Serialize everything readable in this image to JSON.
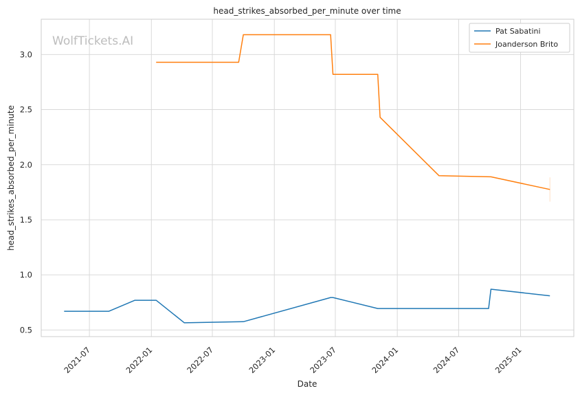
{
  "chart_data": {
    "type": "line",
    "title": "head_strikes_absorbed_per_minute over time",
    "xlabel": "Date",
    "ylabel": "head_strikes_absorbed_per_minute",
    "watermark": "WolfTickets.AI",
    "legend_position": "top-right",
    "grid": true,
    "xlim": [
      "2021-02-08",
      "2025-06-08"
    ],
    "ylim": [
      0.44,
      3.32
    ],
    "x_ticks": [
      "2021-07-01",
      "2022-01-01",
      "2022-07-01",
      "2023-01-01",
      "2023-07-01",
      "2024-01-01",
      "2024-07-01",
      "2025-01-01"
    ],
    "x_tick_labels": [
      "2021-07",
      "2022-01",
      "2022-07",
      "2023-01",
      "2023-07",
      "2024-01",
      "2024-07",
      "2025-01"
    ],
    "y_ticks": [
      0.5,
      1.0,
      1.5,
      2.0,
      2.5,
      3.0
    ],
    "y_tick_labels": [
      "0.5",
      "1.0",
      "1.5",
      "2.0",
      "2.5",
      "3.0"
    ],
    "series": [
      {
        "name": "Pat Sabatini",
        "color": "#1f77b4",
        "x": [
          "2021-04-17",
          "2021-08-28",
          "2021-11-13",
          "2022-01-15",
          "2022-04-09",
          "2022-10-01",
          "2023-06-17",
          "2023-06-24",
          "2023-11-04",
          "2024-09-28",
          "2024-10-05",
          "2025-03-29"
        ],
        "y": [
          0.67,
          0.67,
          0.77,
          0.77,
          0.565,
          0.575,
          0.795,
          0.795,
          0.695,
          0.695,
          0.87,
          0.81
        ]
      },
      {
        "name": "Joanderson Brito",
        "color": "#ff7f0e",
        "x": [
          "2022-01-15",
          "2022-09-17",
          "2022-10-01",
          "2023-06-17",
          "2023-06-24",
          "2023-11-04",
          "2023-11-11",
          "2024-05-04",
          "2024-10-05",
          "2025-03-29"
        ],
        "y": [
          2.93,
          2.93,
          3.18,
          3.18,
          2.82,
          2.82,
          2.43,
          1.9,
          1.89,
          1.775
        ]
      }
    ]
  }
}
